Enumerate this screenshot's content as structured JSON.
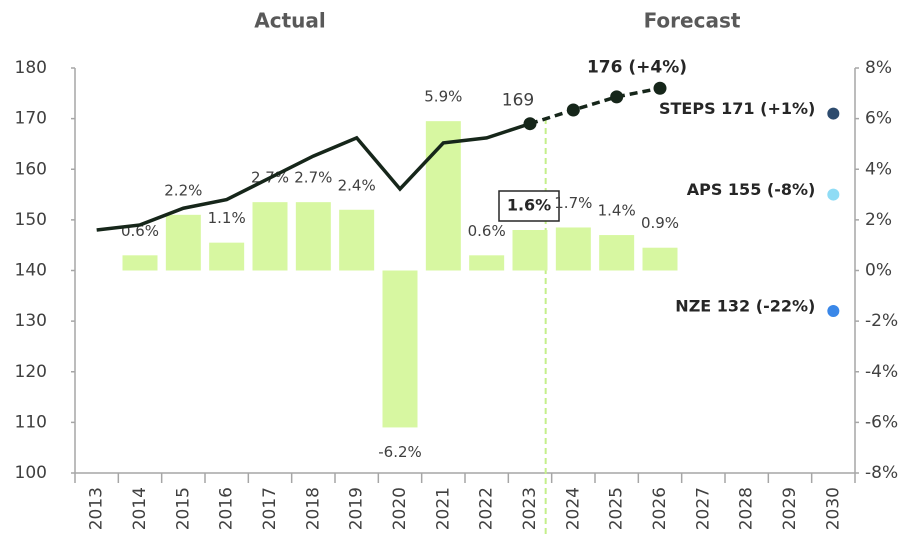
{
  "chart_data": {
    "type": "bar-line",
    "headers": [
      "Actual",
      "Forecast"
    ],
    "categories": [
      "2013",
      "2014",
      "2015",
      "2016",
      "2017",
      "2018",
      "2019",
      "2020",
      "2021",
      "2022",
      "2023",
      "2024",
      "2025",
      "2026",
      "2027",
      "2028",
      "2029",
      "2030"
    ],
    "ylim": [
      100,
      180
    ],
    "yticks": [
      100,
      110,
      120,
      130,
      140,
      150,
      160,
      170,
      180
    ],
    "y2lim": [
      -8,
      8
    ],
    "y2ticks": [
      {
        "value": -8,
        "label": "-8%"
      },
      {
        "value": -6,
        "label": "-6%"
      },
      {
        "value": -4,
        "label": "-4%"
      },
      {
        "value": -2,
        "label": "-2%"
      },
      {
        "value": 0,
        "label": "0%"
      },
      {
        "value": 2,
        "label": "2%"
      },
      {
        "value": 4,
        "label": "4%"
      },
      {
        "value": 6,
        "label": "6%"
      },
      {
        "value": 8,
        "label": "8%"
      }
    ],
    "series": [
      {
        "type": "bar",
        "axis": "y2",
        "color": "#d7f7a1",
        "values": [
          null,
          0.6,
          2.2,
          1.1,
          2.7,
          2.7,
          2.4,
          -6.2,
          5.9,
          0.6,
          1.6,
          1.7,
          1.4,
          0.9,
          null,
          null,
          null,
          null
        ],
        "value_labels": [
          null,
          "0.6%",
          "2.2%",
          "1.1%",
          "2.7%",
          "2.7%",
          "2.4%",
          "-6.2%",
          "5.9%",
          "0.6%",
          "1.6%",
          "1.7%",
          "1.4%",
          "0.9%",
          null,
          null,
          null,
          null
        ]
      },
      {
        "type": "line",
        "color": "#16261a",
        "values": [
          148,
          149,
          152.3,
          154,
          158.3,
          162.6,
          166.2,
          156.1,
          165.2,
          166.2,
          169,
          null,
          null,
          null,
          null,
          null,
          null,
          null
        ],
        "value_labels": [
          null,
          null,
          null,
          null,
          null,
          null,
          null,
          null,
          null,
          null,
          "169",
          null,
          null,
          null,
          null,
          null,
          null,
          null
        ]
      },
      {
        "type": "line",
        "dashed": true,
        "markers": true,
        "color": "#16261a",
        "values": [
          null,
          null,
          null,
          null,
          null,
          null,
          null,
          null,
          null,
          null,
          169,
          171.7,
          174.3,
          176,
          null,
          null,
          null,
          null
        ],
        "value_labels": [
          null,
          null,
          null,
          null,
          null,
          null,
          null,
          null,
          null,
          null,
          null,
          null,
          null,
          "176 (+4%)",
          null,
          null,
          null,
          null
        ]
      }
    ],
    "scenarios": [
      {
        "label": "STEPS 171 (+1%)",
        "value": 171,
        "color": "#2d4b6e"
      },
      {
        "label": "APS 155 (-8%)",
        "value": 155,
        "color": "#8fdcf5"
      },
      {
        "label": "NZE 132 (-22%)",
        "value": 132,
        "color": "#3a87e8"
      }
    ]
  }
}
